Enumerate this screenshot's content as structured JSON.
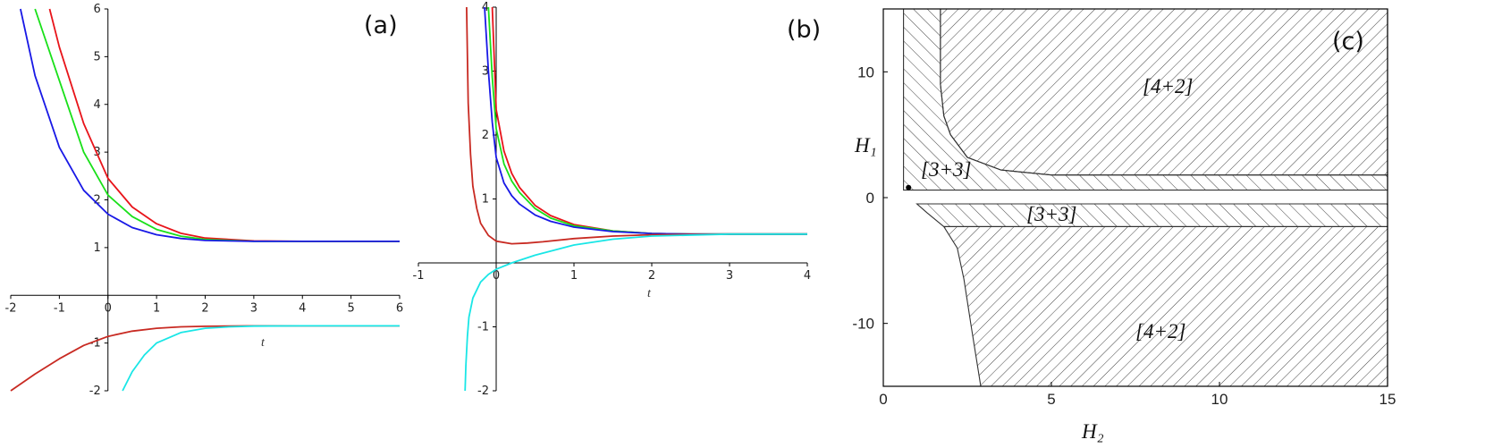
{
  "panels": {
    "a": {
      "tag": "(a)",
      "xlabel": "t"
    },
    "b": {
      "tag": "(b)",
      "xlabel": "t"
    },
    "c": {
      "tag": "(c)",
      "xlabel": "H₂",
      "ylabel": "H₁",
      "region_upper": "[4+2]",
      "region_lower": "[4+2]",
      "region_strip": "[3+3]",
      "region_corner": "[3+3]"
    }
  },
  "chart_data": [
    {
      "type": "line",
      "title": "",
      "tag": "(a)",
      "xlabel": "t",
      "ylabel": "",
      "xlim": [
        -2,
        6
      ],
      "ylim": [
        -2,
        6
      ],
      "xticks": [
        -2,
        -1,
        0,
        1,
        2,
        3,
        4,
        5,
        6
      ],
      "yticks": [
        -2,
        -1,
        1,
        2,
        3,
        4,
        5,
        6
      ],
      "grid": false,
      "series": [
        {
          "color": "#e8141a",
          "x": [
            -1.2,
            -1.0,
            -0.5,
            0,
            0.5,
            1,
            1.5,
            2,
            3,
            4,
            6
          ],
          "y": [
            6.0,
            5.2,
            3.6,
            2.45,
            1.85,
            1.5,
            1.3,
            1.2,
            1.14,
            1.13,
            1.13
          ]
        },
        {
          "color": "#19e019",
          "x": [
            -1.5,
            -1.0,
            -0.5,
            0,
            0.5,
            1,
            1.5,
            2,
            3,
            4,
            6
          ],
          "y": [
            6.0,
            4.5,
            3.0,
            2.1,
            1.65,
            1.38,
            1.24,
            1.17,
            1.13,
            1.13,
            1.13
          ]
        },
        {
          "color": "#1818e6",
          "x": [
            -1.8,
            -1.5,
            -1.0,
            -0.5,
            0,
            0.5,
            1,
            1.5,
            2,
            3,
            4,
            6
          ],
          "y": [
            6.0,
            4.6,
            3.1,
            2.2,
            1.7,
            1.42,
            1.27,
            1.19,
            1.15,
            1.13,
            1.13,
            1.13
          ]
        },
        {
          "color": "#c82a22",
          "x": [
            -2.0,
            -1.5,
            -1.0,
            -0.5,
            0,
            0.5,
            1,
            1.5,
            2,
            3,
            4,
            6
          ],
          "y": [
            -2.0,
            -1.65,
            -1.33,
            -1.05,
            -0.86,
            -0.75,
            -0.69,
            -0.66,
            -0.65,
            -0.64,
            -0.64,
            -0.64
          ]
        },
        {
          "color": "#19e6e6",
          "x": [
            0.3,
            0.5,
            0.75,
            1,
            1.5,
            2,
            2.5,
            3,
            4,
            6
          ],
          "y": [
            -2.0,
            -1.6,
            -1.25,
            -1.0,
            -0.78,
            -0.69,
            -0.66,
            -0.645,
            -0.64,
            -0.64
          ]
        }
      ]
    },
    {
      "type": "line",
      "title": "",
      "tag": "(b)",
      "xlabel": "t",
      "ylabel": "",
      "xlim": [
        -1,
        4
      ],
      "ylim": [
        -2,
        4
      ],
      "xticks": [
        -1,
        0,
        1,
        2,
        3,
        4
      ],
      "yticks": [
        -2,
        -1,
        1,
        2,
        3,
        4
      ],
      "grid": false,
      "series": [
        {
          "color": "#e8141a",
          "x": [
            -0.05,
            0,
            0.1,
            0.2,
            0.3,
            0.5,
            0.7,
            1,
            1.5,
            2,
            2.5,
            3,
            4
          ],
          "y": [
            4.0,
            2.4,
            1.75,
            1.4,
            1.18,
            0.9,
            0.74,
            0.6,
            0.5,
            0.46,
            0.45,
            0.45,
            0.45
          ]
        },
        {
          "color": "#19e019",
          "x": [
            -0.1,
            -0.05,
            0,
            0.1,
            0.2,
            0.3,
            0.5,
            0.7,
            1,
            1.5,
            2,
            2.5,
            3,
            4
          ],
          "y": [
            4.0,
            2.9,
            2.1,
            1.55,
            1.28,
            1.1,
            0.85,
            0.7,
            0.58,
            0.5,
            0.46,
            0.45,
            0.45,
            0.45
          ]
        },
        {
          "color": "#1818e6",
          "x": [
            -0.15,
            -0.1,
            -0.05,
            0,
            0.1,
            0.2,
            0.3,
            0.5,
            0.7,
            1,
            1.5,
            2,
            2.5,
            3,
            4
          ],
          "y": [
            4.0,
            3.0,
            2.2,
            1.65,
            1.25,
            1.05,
            0.92,
            0.75,
            0.65,
            0.56,
            0.49,
            0.46,
            0.45,
            0.45,
            0.45
          ]
        },
        {
          "color": "#c82a22",
          "x": [
            -0.38,
            -0.36,
            -0.33,
            -0.3,
            -0.25,
            -0.2,
            -0.1,
            0,
            0.2,
            0.4,
            0.6,
            1,
            1.5,
            2,
            3,
            4
          ],
          "y": [
            4.0,
            2.5,
            1.7,
            1.2,
            0.85,
            0.62,
            0.43,
            0.34,
            0.3,
            0.31,
            0.33,
            0.38,
            0.42,
            0.44,
            0.45,
            0.45
          ]
        },
        {
          "color": "#19e6e6",
          "x": [
            -0.4,
            -0.39,
            -0.37,
            -0.35,
            -0.3,
            -0.2,
            -0.1,
            0,
            0.2,
            0.5,
            1,
            1.5,
            2,
            3,
            4
          ],
          "y": [
            -2.0,
            -1.6,
            -1.15,
            -0.85,
            -0.55,
            -0.3,
            -0.18,
            -0.1,
            0.0,
            0.12,
            0.28,
            0.37,
            0.42,
            0.45,
            0.45
          ]
        }
      ]
    },
    {
      "type": "area",
      "title": "",
      "tag": "(c)",
      "xlabel": "H₂",
      "ylabel": "H₁",
      "xlim": [
        0,
        15
      ],
      "ylim": [
        -15,
        15
      ],
      "xticks": [
        0,
        5,
        10,
        15
      ],
      "yticks": [
        -10,
        0,
        10
      ],
      "grid": false,
      "regions": [
        {
          "label": "[4+2]",
          "hatch": "diagonal-dense",
          "x": [
            1.7,
            1.7,
            1.8,
            2.0,
            2.5,
            3.5,
            5,
            15,
            15,
            1.7
          ],
          "y": [
            15,
            9,
            6.5,
            5,
            3.2,
            2.2,
            1.8,
            1.8,
            15,
            15
          ]
        },
        {
          "label": "[3+3]",
          "hatch": "diagonal",
          "x": [
            0.6,
            0.6,
            15,
            15,
            5,
            3.5,
            2.5,
            2.0,
            1.8,
            1.7,
            1.7,
            0.6
          ],
          "y": [
            15,
            0.6,
            0.6,
            1.8,
            1.8,
            2.2,
            3.2,
            5,
            6.5,
            9,
            15,
            15
          ]
        },
        {
          "label": "[3+3]",
          "hatch": "diagonal",
          "x": [
            1.0,
            15,
            15,
            1.8,
            1.3,
            1.0
          ],
          "y": [
            -0.5,
            -0.5,
            -2.3,
            -2.3,
            -1.2,
            -0.5
          ]
        },
        {
          "label": "[4+2]",
          "hatch": "diagonal-dense",
          "x": [
            1.8,
            15,
            15,
            2.9,
            2.6,
            2.4,
            2.2,
            1.8
          ],
          "y": [
            -2.3,
            -2.3,
            -15,
            -15,
            -10,
            -6.5,
            -4,
            -2.3
          ]
        }
      ],
      "points": [
        {
          "x": 0.75,
          "y": 0.8
        }
      ]
    }
  ]
}
